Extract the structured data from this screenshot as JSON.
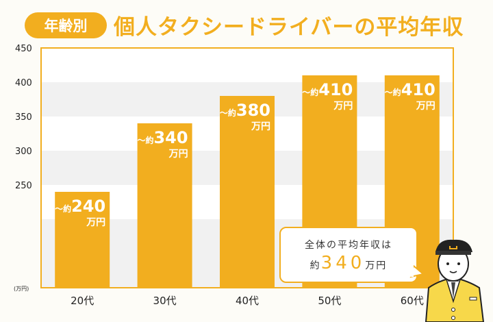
{
  "header": {
    "badge": "年齢別",
    "title": "個人タクシードライバーの平均年収"
  },
  "chart_data": {
    "type": "bar",
    "title": "個人タクシードライバーの平均年収",
    "categories": [
      "20代",
      "30代",
      "40代",
      "50代",
      "60代"
    ],
    "values": [
      240,
      340,
      380,
      410,
      410
    ],
    "data_labels": [
      {
        "prefix": "～約",
        "value": "240",
        "unit": "万円"
      },
      {
        "prefix": "～約",
        "value": "340",
        "unit": "万円"
      },
      {
        "prefix": "～約",
        "value": "380",
        "unit": "万円"
      },
      {
        "prefix": "～約",
        "value": "410",
        "unit": "万円"
      },
      {
        "prefix": "～約",
        "value": "410",
        "unit": "万円"
      }
    ],
    "ylabel": "(万円)",
    "yticks": [
      250,
      300,
      350,
      400,
      450
    ],
    "ylim": [
      100,
      450
    ],
    "grid": "alternating bands",
    "bar_color": "#f2ae1f"
  },
  "callout": {
    "line1": "全体の平均年収は",
    "prefix": "約",
    "value": "340",
    "unit": "万円"
  },
  "illustration": "taxi-driver-icon"
}
